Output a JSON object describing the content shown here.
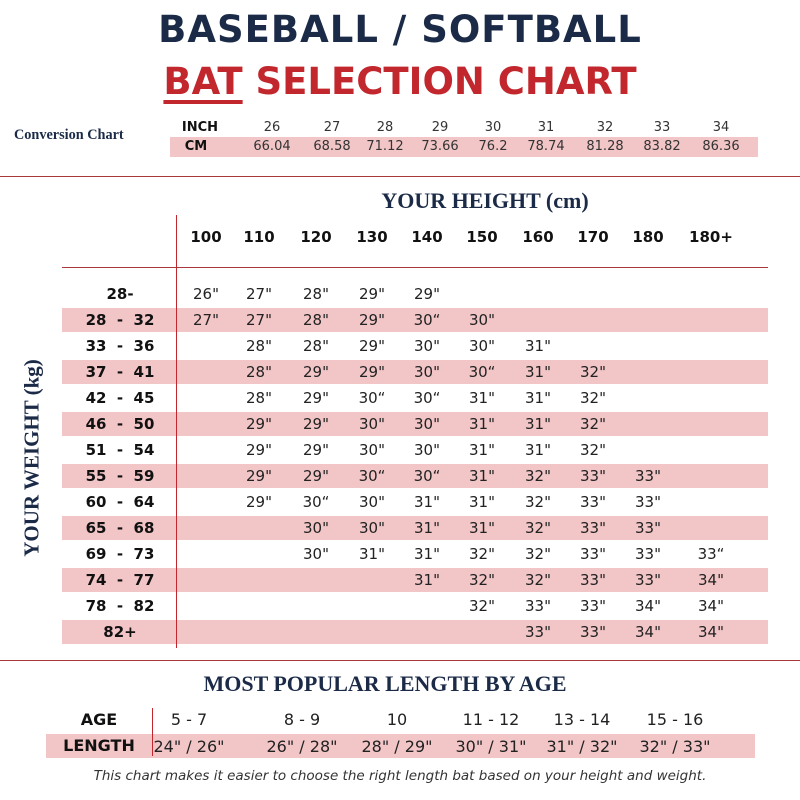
{
  "title_line1": "BASEBALL / SOFTBALL",
  "title_line2_highlight": "BAT",
  "title_line2_rest": " SELECTION CHART",
  "colors": {
    "navy": "#1b2a47",
    "red": "#c1272d",
    "band": "#f2c5c7"
  },
  "conversion": {
    "title": "Conversion Chart",
    "inch_label": "INCH",
    "cm_label": "CM",
    "inch": [
      "26",
      "27",
      "28",
      "29",
      "30",
      "31",
      "32",
      "33",
      "34"
    ],
    "cm": [
      "66.04",
      "68.58",
      "71.12",
      "73.66",
      "76.2",
      "78.74",
      "81.28",
      "83.82",
      "86.36"
    ]
  },
  "size_chart": {
    "height_title": "YOUR HEIGHT (cm)",
    "weight_title": "YOUR WEIGHT (kg)",
    "heights": [
      "100",
      "110",
      "120",
      "130",
      "140",
      "150",
      "160",
      "170",
      "180",
      "180+"
    ],
    "rows": [
      {
        "weight": "28-",
        "bats": [
          "26\"",
          "27\"",
          "28\"",
          "29\"",
          "29\"",
          "",
          "",
          "",
          "",
          ""
        ]
      },
      {
        "weight": "28  -  32",
        "bats": [
          "27\"",
          "27\"",
          "28\"",
          "29\"",
          "30“",
          "30\"",
          "",
          "",
          "",
          ""
        ]
      },
      {
        "weight": "33  -  36",
        "bats": [
          "",
          "28\"",
          "28\"",
          "29\"",
          "30\"",
          "30\"",
          "31\"",
          "",
          "",
          ""
        ]
      },
      {
        "weight": "37  -  41",
        "bats": [
          "",
          "28\"",
          "29\"",
          "29\"",
          "30\"",
          "30“",
          "31\"",
          "32\"",
          "",
          ""
        ]
      },
      {
        "weight": "42  -  45",
        "bats": [
          "",
          "28\"",
          "29\"",
          "30“",
          "30“",
          "31\"",
          "31\"",
          "32\"",
          "",
          ""
        ]
      },
      {
        "weight": "46  -  50",
        "bats": [
          "",
          "29\"",
          "29\"",
          "30\"",
          "30\"",
          "31\"",
          "31\"",
          "32\"",
          "",
          ""
        ]
      },
      {
        "weight": "51  -  54",
        "bats": [
          "",
          "29\"",
          "29\"",
          "30\"",
          "30\"",
          "31\"",
          "31\"",
          "32\"",
          "",
          ""
        ]
      },
      {
        "weight": "55  -  59",
        "bats": [
          "",
          "29\"",
          "29\"",
          "30“",
          "30“",
          "31\"",
          "32\"",
          "33\"",
          "33\"",
          ""
        ]
      },
      {
        "weight": "60  -  64",
        "bats": [
          "",
          "29\"",
          "30“",
          "30\"",
          "31\"",
          "31\"",
          "32\"",
          "33\"",
          "33\"",
          ""
        ]
      },
      {
        "weight": "65  -  68",
        "bats": [
          "",
          "",
          "30\"",
          "30\"",
          "31\"",
          "31\"",
          "32\"",
          "33\"",
          "33\"",
          ""
        ]
      },
      {
        "weight": "69  -  73",
        "bats": [
          "",
          "",
          "30\"",
          "31\"",
          "31\"",
          "32\"",
          "32\"",
          "33\"",
          "33\"",
          "33“"
        ]
      },
      {
        "weight": "74  -  77",
        "bats": [
          "",
          "",
          "",
          "",
          "31\"",
          "32\"",
          "32\"",
          "33\"",
          "33\"",
          "34\""
        ]
      },
      {
        "weight": "78  -  82",
        "bats": [
          "",
          "",
          "",
          "",
          "",
          "32\"",
          "33\"",
          "33\"",
          "34\"",
          "34\""
        ]
      },
      {
        "weight": "82+",
        "bats": [
          "",
          "",
          "",
          "",
          "",
          "",
          "33\"",
          "33\"",
          "34\"",
          "34\""
        ]
      }
    ]
  },
  "age_chart": {
    "title": "MOST POPULAR LENGTH BY AGE",
    "age_label": "AGE",
    "length_label": "LENGTH",
    "ages": [
      "5 - 7",
      "8 - 9",
      "10",
      "11 - 12",
      "13 - 14",
      "15 - 16"
    ],
    "lengths": [
      "24\" / 26\"",
      "26\" / 28\"",
      "28\" / 29\"",
      "30\" / 31\"",
      "31\" / 32\"",
      "32\" / 33\""
    ]
  },
  "footnote": "This chart makes it easier to choose the right length bat based on your height and weight."
}
